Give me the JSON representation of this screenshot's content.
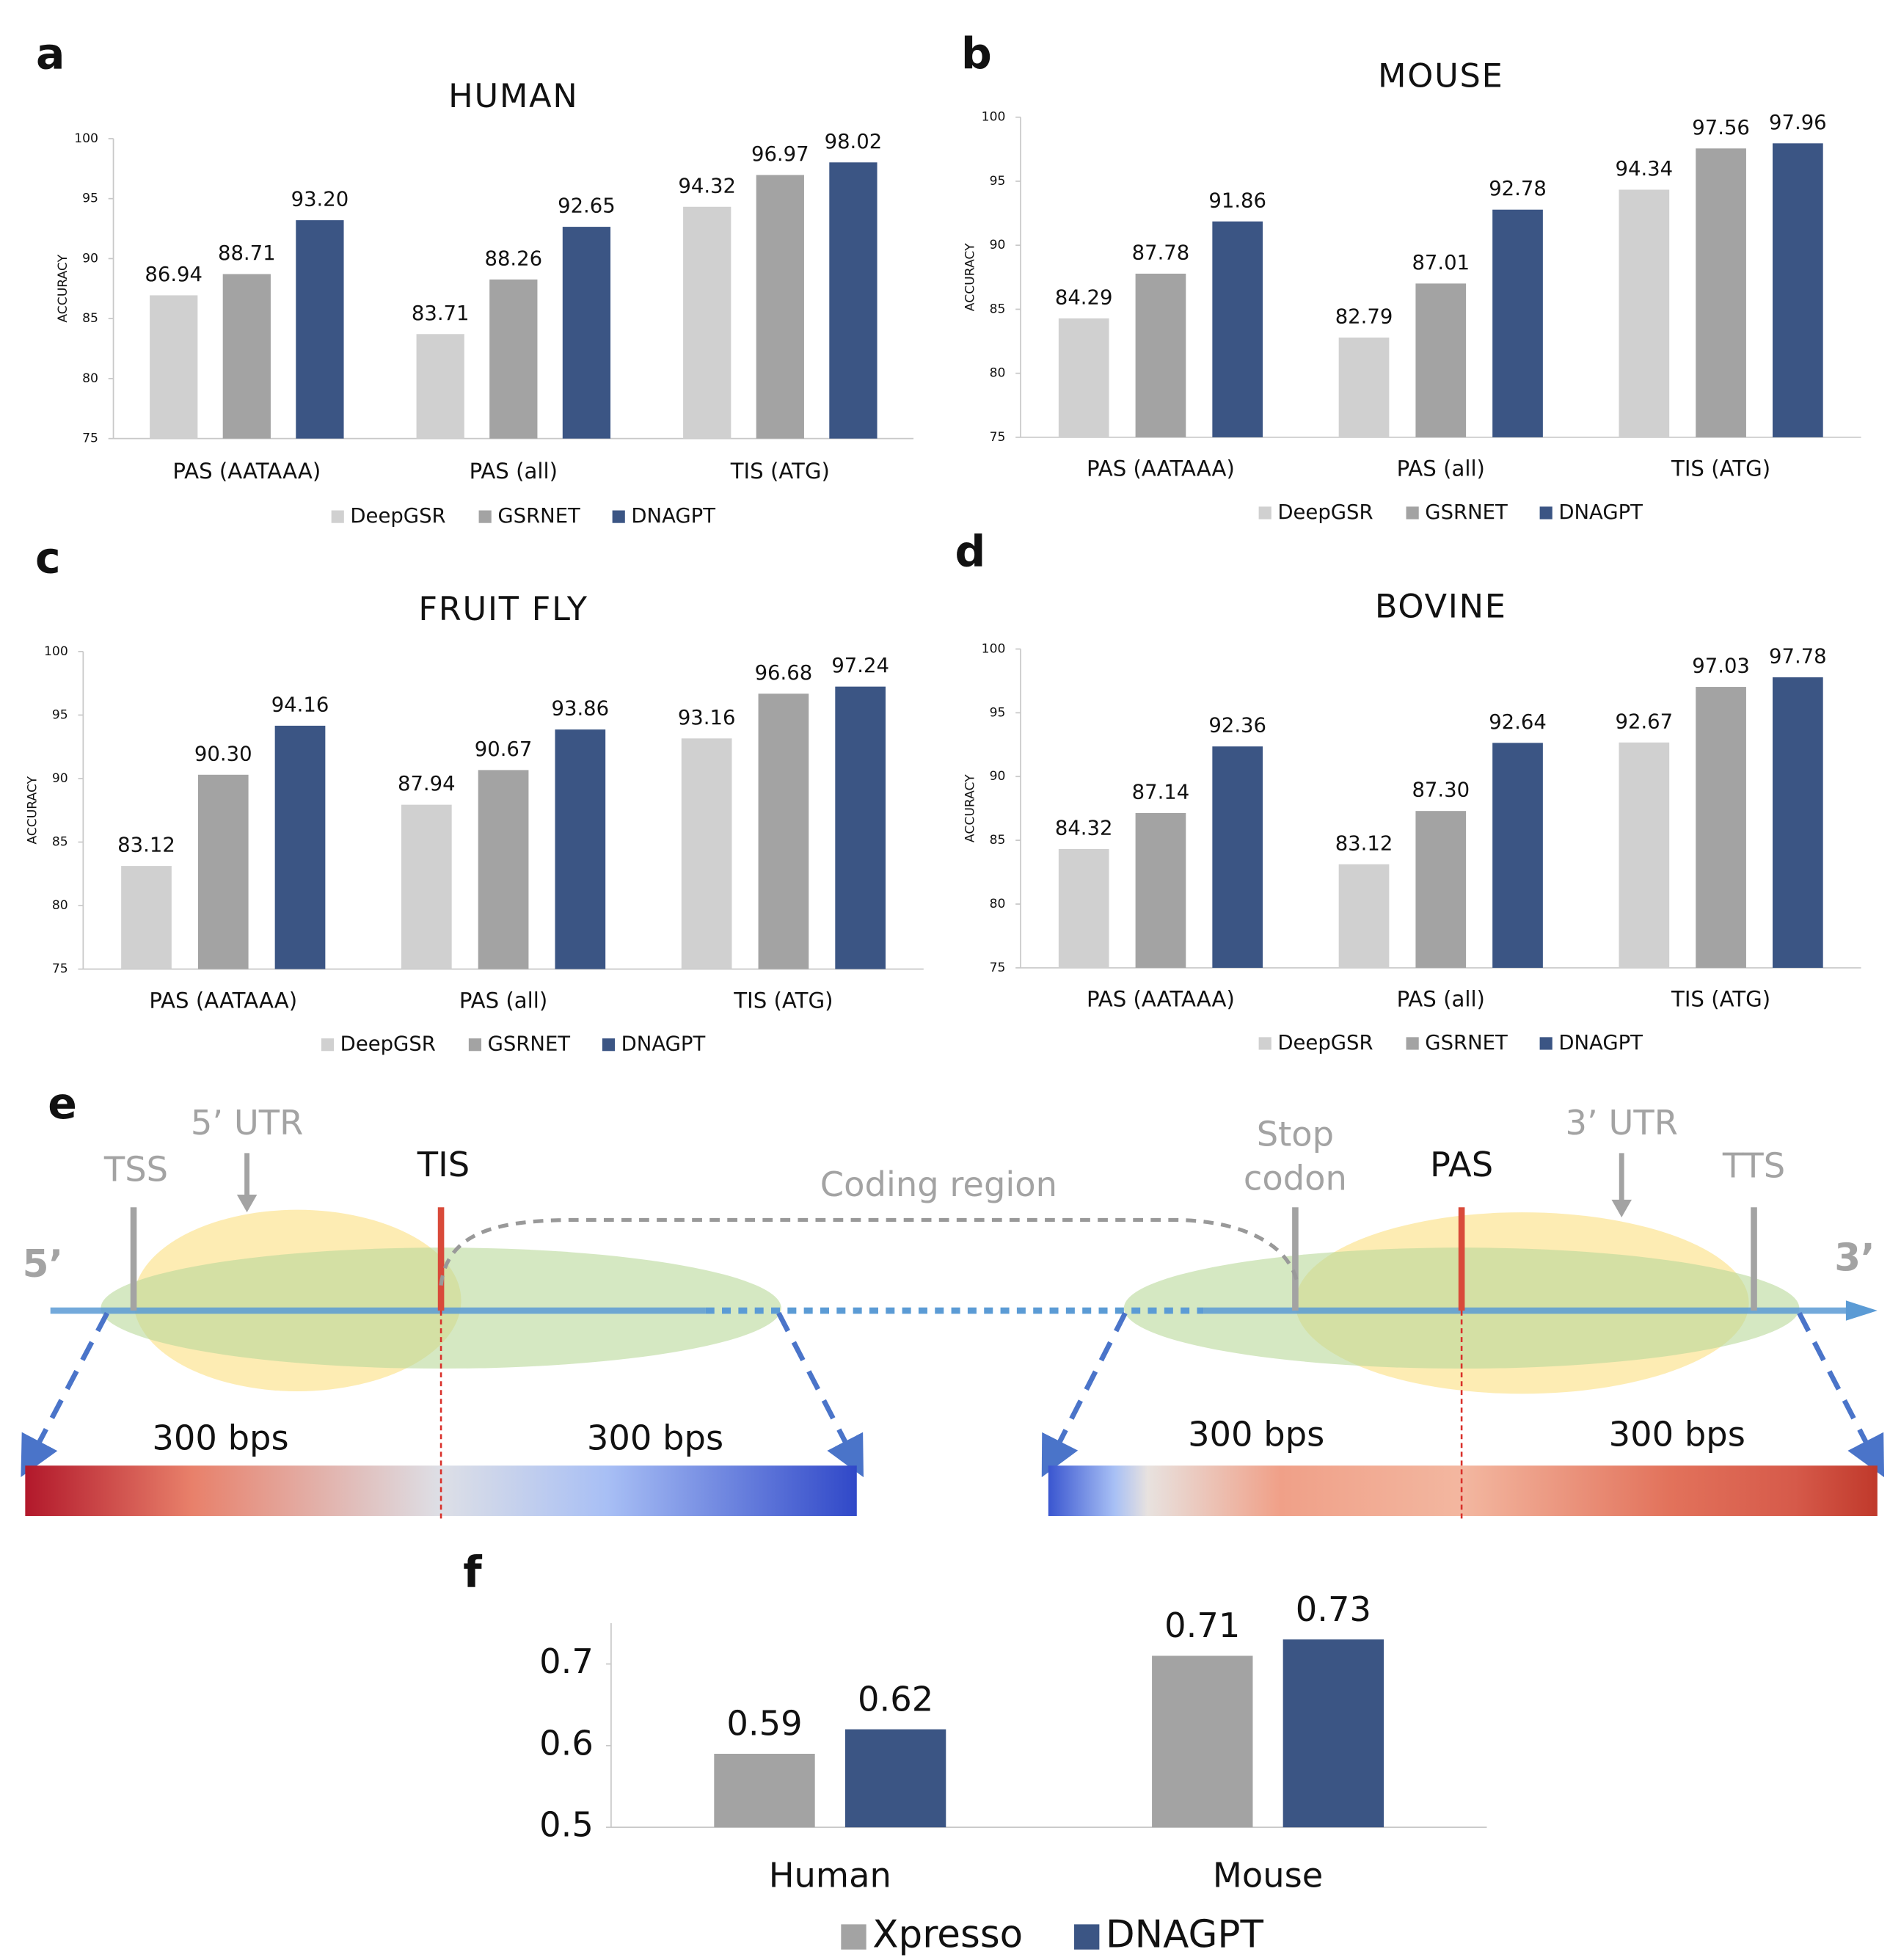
{
  "chart_data": [
    {
      "type": "bar",
      "panel": "a",
      "title": "HUMAN",
      "y_label": "ACCURACY",
      "categories": [
        "PAS (AATAAA)",
        "PAS (all)",
        "TIS (ATG)"
      ],
      "series": [
        {
          "name": "DeepGSR",
          "color": "#d0d0d0",
          "values": [
            86.94,
            83.71,
            94.32
          ],
          "value_labels": [
            "86.94",
            "83.71",
            "94.32"
          ]
        },
        {
          "name": "GSRNET",
          "color": "#a3a3a3",
          "values": [
            88.71,
            88.26,
            96.97
          ],
          "value_labels": [
            "88.71",
            "88.26",
            "96.97"
          ]
        },
        {
          "name": "DNAGPT",
          "color": "#3b5584",
          "values": [
            93.2,
            92.65,
            98.02
          ],
          "value_labels": [
            "93.20",
            "92.65",
            "98.02"
          ]
        }
      ],
      "ylim": [
        75,
        100
      ],
      "yticks": [
        75,
        80,
        85,
        90,
        95,
        100
      ],
      "grid": false
    },
    {
      "type": "bar",
      "panel": "b",
      "title": "MOUSE",
      "y_label": "ACCURACY",
      "categories": [
        "PAS (AATAAA)",
        "PAS (all)",
        "TIS (ATG)"
      ],
      "series": [
        {
          "name": "DeepGSR",
          "color": "#d0d0d0",
          "values": [
            84.29,
            82.79,
            94.34
          ],
          "value_labels": [
            "84.29",
            "82.79",
            "94.34"
          ]
        },
        {
          "name": "GSRNET",
          "color": "#a3a3a3",
          "values": [
            87.78,
            87.01,
            97.56
          ],
          "value_labels": [
            "87.78",
            "87.01",
            "97.56"
          ]
        },
        {
          "name": "DNAGPT",
          "color": "#3b5584",
          "values": [
            91.86,
            92.78,
            97.96
          ],
          "value_labels": [
            "91.86",
            "92.78",
            "97.96"
          ]
        }
      ],
      "ylim": [
        75,
        100
      ],
      "yticks": [
        75,
        80,
        85,
        90,
        95,
        100
      ],
      "grid": false
    },
    {
      "type": "bar",
      "panel": "c",
      "title": "FRUIT FLY",
      "y_label": "ACCURACY",
      "categories": [
        "PAS (AATAAA)",
        "PAS (all)",
        "TIS (ATG)"
      ],
      "series": [
        {
          "name": "DeepGSR",
          "color": "#d0d0d0",
          "values": [
            83.12,
            87.94,
            93.16
          ],
          "value_labels": [
            "83.12",
            "87.94",
            "93.16"
          ]
        },
        {
          "name": "GSRNET",
          "color": "#a3a3a3",
          "values": [
            90.3,
            90.67,
            96.68
          ],
          "value_labels": [
            "90.30",
            "90.67",
            "96.68"
          ]
        },
        {
          "name": "DNAGPT",
          "color": "#3b5584",
          "values": [
            94.16,
            93.86,
            97.24
          ],
          "value_labels": [
            "94.16",
            "93.86",
            "97.24"
          ]
        }
      ],
      "ylim": [
        75,
        100
      ],
      "yticks": [
        75,
        80,
        85,
        90,
        95,
        100
      ],
      "grid": false
    },
    {
      "type": "bar",
      "panel": "d",
      "title": "BOVINE",
      "y_label": "ACCURACY",
      "categories": [
        "PAS (AATAAA)",
        "PAS (all)",
        "TIS (ATG)"
      ],
      "series": [
        {
          "name": "DeepGSR",
          "color": "#d0d0d0",
          "values": [
            84.32,
            83.12,
            92.67
          ],
          "value_labels": [
            "84.32",
            "83.12",
            "92.67"
          ]
        },
        {
          "name": "GSRNET",
          "color": "#a3a3a3",
          "values": [
            87.14,
            87.3,
            97.03
          ],
          "value_labels": [
            "87.14",
            "87.30",
            "97.03"
          ]
        },
        {
          "name": "DNAGPT",
          "color": "#3b5584",
          "values": [
            92.36,
            92.64,
            97.78
          ],
          "value_labels": [
            "92.36",
            "92.64",
            "97.78"
          ]
        }
      ],
      "ylim": [
        75,
        100
      ],
      "yticks": [
        75,
        80,
        85,
        90,
        95,
        100
      ],
      "grid": false
    },
    {
      "type": "bar",
      "panel": "f",
      "categories": [
        "Human",
        "Mouse"
      ],
      "series": [
        {
          "name": "Xpresso",
          "color": "#a3a3a3",
          "values": [
            0.59,
            0.71
          ]
        },
        {
          "name": "DNAGPT",
          "color": "#3b5584",
          "values": [
            0.62,
            0.73
          ]
        }
      ],
      "ylim": [
        0.5,
        0.75
      ],
      "yticks": [
        0.5,
        0.6,
        0.7
      ],
      "grid": false
    }
  ],
  "diagram": {
    "panel": "e",
    "tss": "TSS",
    "utr5": "5’ UTR",
    "tis": "TIS",
    "coding": "Coding region",
    "stop": [
      "Stop",
      "codon"
    ],
    "pas": "PAS",
    "utr3": "3’ UTR",
    "tts": "TTS",
    "end5": "5’",
    "end3": "3’",
    "window_labels": [
      "300 bps",
      "300 bps",
      "300 bps",
      "300 bps"
    ]
  }
}
